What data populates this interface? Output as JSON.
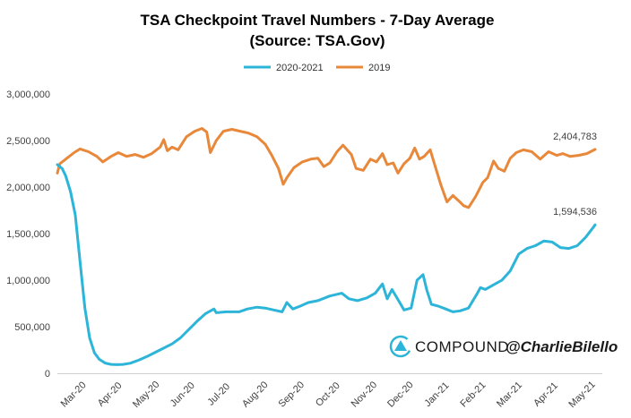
{
  "chart_data": {
    "type": "line",
    "title": "TSA Checkpoint Travel Numbers - 7-Day Average",
    "subtitle": "(Source: TSA.Gov)",
    "xlabel": "",
    "ylabel": "",
    "ylim": [
      0,
      3000000
    ],
    "yticks": [
      "0",
      "500,000",
      "1,000,000",
      "1,500,000",
      "2,000,000",
      "2,500,000",
      "3,000,000"
    ],
    "yticks_values": [
      0,
      500000,
      1000000,
      1500000,
      2000000,
      2500000,
      3000000
    ],
    "xticks": [
      "Mar-20",
      "Apr-20",
      "May-20",
      "Jun-20",
      "Jul-20",
      "Aug-20",
      "Sep-20",
      "Oct-20",
      "Nov-20",
      "Dec-20",
      "Jan-21",
      "Feb-21",
      "Mar-21",
      "Apr-21",
      "May-21"
    ],
    "xlim": [
      "2020-03-01",
      "2021-05-31"
    ],
    "grid": false,
    "legend_position": "top",
    "series": [
      {
        "name": "2020-2021",
        "color": "#2cb5d8",
        "points": [
          [
            "2020-03-01",
            2240000
          ],
          [
            "2020-03-05",
            2200000
          ],
          [
            "2020-03-08",
            2120000
          ],
          [
            "2020-03-12",
            1950000
          ],
          [
            "2020-03-16",
            1700000
          ],
          [
            "2020-03-20",
            1200000
          ],
          [
            "2020-03-24",
            700000
          ],
          [
            "2020-03-28",
            380000
          ],
          [
            "2020-04-01",
            220000
          ],
          [
            "2020-04-05",
            150000
          ],
          [
            "2020-04-10",
            110000
          ],
          [
            "2020-04-15",
            95000
          ],
          [
            "2020-04-20",
            92000
          ],
          [
            "2020-04-25",
            95000
          ],
          [
            "2020-05-01",
            108000
          ],
          [
            "2020-05-08",
            140000
          ],
          [
            "2020-05-15",
            180000
          ],
          [
            "2020-05-22",
            225000
          ],
          [
            "2020-05-29",
            270000
          ],
          [
            "2020-06-05",
            315000
          ],
          [
            "2020-06-12",
            380000
          ],
          [
            "2020-06-19",
            470000
          ],
          [
            "2020-06-26",
            560000
          ],
          [
            "2020-07-03",
            640000
          ],
          [
            "2020-07-10",
            690000
          ],
          [
            "2020-07-12",
            650000
          ],
          [
            "2020-07-20",
            660000
          ],
          [
            "2020-07-31",
            660000
          ],
          [
            "2020-08-07",
            690000
          ],
          [
            "2020-08-15",
            710000
          ],
          [
            "2020-08-22",
            700000
          ],
          [
            "2020-08-29",
            680000
          ],
          [
            "2020-09-05",
            660000
          ],
          [
            "2020-09-09",
            760000
          ],
          [
            "2020-09-14",
            690000
          ],
          [
            "2020-09-20",
            720000
          ],
          [
            "2020-09-27",
            760000
          ],
          [
            "2020-10-05",
            780000
          ],
          [
            "2020-10-15",
            830000
          ],
          [
            "2020-10-25",
            860000
          ],
          [
            "2020-10-31",
            800000
          ],
          [
            "2020-11-07",
            780000
          ],
          [
            "2020-11-15",
            810000
          ],
          [
            "2020-11-22",
            860000
          ],
          [
            "2020-11-28",
            960000
          ],
          [
            "2020-12-02",
            800000
          ],
          [
            "2020-12-06",
            900000
          ],
          [
            "2020-12-12",
            770000
          ],
          [
            "2020-12-16",
            680000
          ],
          [
            "2020-12-22",
            700000
          ],
          [
            "2020-12-27",
            1000000
          ],
          [
            "2021-01-01",
            1060000
          ],
          [
            "2021-01-04",
            900000
          ],
          [
            "2021-01-08",
            740000
          ],
          [
            "2021-01-14",
            720000
          ],
          [
            "2021-01-20",
            690000
          ],
          [
            "2021-01-26",
            660000
          ],
          [
            "2021-02-01",
            670000
          ],
          [
            "2021-02-08",
            700000
          ],
          [
            "2021-02-15",
            850000
          ],
          [
            "2021-02-18",
            920000
          ],
          [
            "2021-02-22",
            900000
          ],
          [
            "2021-03-01",
            950000
          ],
          [
            "2021-03-08",
            1000000
          ],
          [
            "2021-03-15",
            1100000
          ],
          [
            "2021-03-22",
            1280000
          ],
          [
            "2021-03-29",
            1340000
          ],
          [
            "2021-04-05",
            1370000
          ],
          [
            "2021-04-12",
            1420000
          ],
          [
            "2021-04-19",
            1410000
          ],
          [
            "2021-04-26",
            1350000
          ],
          [
            "2021-05-03",
            1340000
          ],
          [
            "2021-05-10",
            1370000
          ],
          [
            "2021-05-17",
            1460000
          ],
          [
            "2021-05-23",
            1560000
          ],
          [
            "2021-05-25",
            1594536
          ]
        ],
        "end_label": "1,594,536"
      },
      {
        "name": "2019",
        "color": "#e8883a",
        "points": [
          [
            "2020-03-01",
            2150000
          ],
          [
            "2020-03-03",
            2250000
          ],
          [
            "2020-03-08",
            2300000
          ],
          [
            "2020-03-15",
            2370000
          ],
          [
            "2020-03-20",
            2410000
          ],
          [
            "2020-03-27",
            2380000
          ],
          [
            "2020-04-03",
            2330000
          ],
          [
            "2020-04-08",
            2270000
          ],
          [
            "2020-04-15",
            2330000
          ],
          [
            "2020-04-21",
            2370000
          ],
          [
            "2020-04-28",
            2330000
          ],
          [
            "2020-05-05",
            2350000
          ],
          [
            "2020-05-12",
            2320000
          ],
          [
            "2020-05-19",
            2360000
          ],
          [
            "2020-05-26",
            2430000
          ],
          [
            "2020-05-29",
            2510000
          ],
          [
            "2020-06-01",
            2390000
          ],
          [
            "2020-06-05",
            2430000
          ],
          [
            "2020-06-10",
            2400000
          ],
          [
            "2020-06-17",
            2540000
          ],
          [
            "2020-06-24",
            2600000
          ],
          [
            "2020-06-30",
            2630000
          ],
          [
            "2020-07-04",
            2590000
          ],
          [
            "2020-07-07",
            2370000
          ],
          [
            "2020-07-12",
            2500000
          ],
          [
            "2020-07-18",
            2600000
          ],
          [
            "2020-07-25",
            2620000
          ],
          [
            "2020-08-01",
            2600000
          ],
          [
            "2020-08-08",
            2580000
          ],
          [
            "2020-08-15",
            2540000
          ],
          [
            "2020-08-22",
            2460000
          ],
          [
            "2020-08-27",
            2350000
          ],
          [
            "2020-09-02",
            2200000
          ],
          [
            "2020-09-06",
            2030000
          ],
          [
            "2020-09-09",
            2100000
          ],
          [
            "2020-09-15",
            2210000
          ],
          [
            "2020-09-22",
            2270000
          ],
          [
            "2020-09-29",
            2300000
          ],
          [
            "2020-10-05",
            2310000
          ],
          [
            "2020-10-10",
            2220000
          ],
          [
            "2020-10-15",
            2260000
          ],
          [
            "2020-10-21",
            2380000
          ],
          [
            "2020-10-26",
            2450000
          ],
          [
            "2020-11-02",
            2350000
          ],
          [
            "2020-11-06",
            2200000
          ],
          [
            "2020-11-12",
            2180000
          ],
          [
            "2020-11-18",
            2300000
          ],
          [
            "2020-11-23",
            2270000
          ],
          [
            "2020-11-28",
            2360000
          ],
          [
            "2020-12-02",
            2240000
          ],
          [
            "2020-12-07",
            2260000
          ],
          [
            "2020-12-11",
            2150000
          ],
          [
            "2020-12-16",
            2250000
          ],
          [
            "2020-12-21",
            2310000
          ],
          [
            "2020-12-25",
            2420000
          ],
          [
            "2020-12-29",
            2300000
          ],
          [
            "2021-01-02",
            2330000
          ],
          [
            "2021-01-07",
            2400000
          ],
          [
            "2021-01-11",
            2230000
          ],
          [
            "2021-01-16",
            2020000
          ],
          [
            "2021-01-21",
            1840000
          ],
          [
            "2021-01-26",
            1910000
          ],
          [
            "2021-01-31",
            1850000
          ],
          [
            "2021-02-04",
            1800000
          ],
          [
            "2021-02-08",
            1780000
          ],
          [
            "2021-02-14",
            1900000
          ],
          [
            "2021-02-20",
            2050000
          ],
          [
            "2021-02-24",
            2100000
          ],
          [
            "2021-03-01",
            2280000
          ],
          [
            "2021-03-05",
            2200000
          ],
          [
            "2021-03-10",
            2170000
          ],
          [
            "2021-03-15",
            2310000
          ],
          [
            "2021-03-20",
            2370000
          ],
          [
            "2021-03-26",
            2400000
          ],
          [
            "2021-04-02",
            2380000
          ],
          [
            "2021-04-09",
            2300000
          ],
          [
            "2021-04-16",
            2380000
          ],
          [
            "2021-04-23",
            2340000
          ],
          [
            "2021-04-28",
            2360000
          ],
          [
            "2021-05-04",
            2330000
          ],
          [
            "2021-05-11",
            2340000
          ],
          [
            "2021-05-18",
            2360000
          ],
          [
            "2021-05-25",
            2404783
          ]
        ],
        "end_label": "2,404,783"
      }
    ]
  },
  "brand": {
    "logo_icon": "compound-logo-icon",
    "name": "COMPOUND",
    "handle": "@CharlieBilello",
    "accent_color": "#2cb5d8"
  }
}
